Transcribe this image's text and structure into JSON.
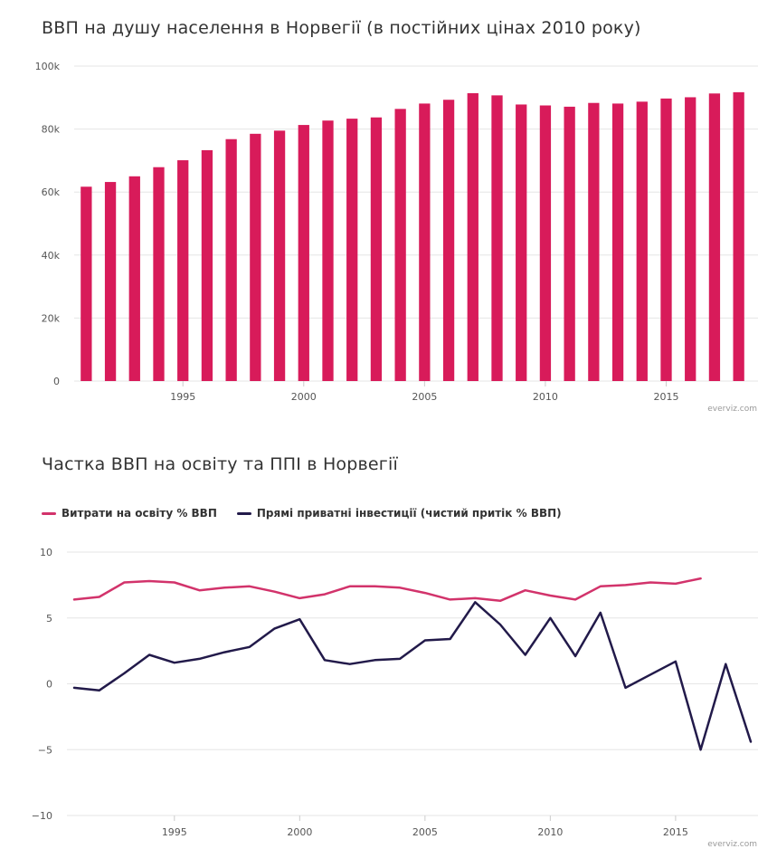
{
  "colors": {
    "bar": "#d81b5a",
    "series_education": "#d2336b",
    "series_fdi": "#221a4a",
    "grid": "#e6e6e6"
  },
  "credits": "everviz.com",
  "chart_data": [
    {
      "type": "bar",
      "title": "ВВП на душу населення в Норвегії (в постійних цінах 2010 року)",
      "x": [
        1991,
        1992,
        1993,
        1994,
        1995,
        1996,
        1997,
        1998,
        1999,
        2000,
        2001,
        2002,
        2003,
        2004,
        2005,
        2006,
        2007,
        2008,
        2009,
        2010,
        2011,
        2012,
        2013,
        2014,
        2015,
        2016,
        2017,
        2018
      ],
      "values": [
        61700,
        63200,
        65000,
        67900,
        70100,
        73300,
        76800,
        78500,
        79500,
        81300,
        82700,
        83300,
        83700,
        86400,
        88100,
        89300,
        91400,
        90700,
        87800,
        87500,
        87100,
        88300,
        88100,
        88700,
        89700,
        90100,
        91300,
        91700
      ],
      "xlabel": "",
      "ylabel": "",
      "ylim": [
        0,
        100000
      ],
      "yticks": [
        0,
        20000,
        40000,
        60000,
        80000,
        100000
      ],
      "ytick_labels": [
        "0",
        "20k",
        "40k",
        "60k",
        "80k",
        "100k"
      ],
      "xticks": [
        1995,
        2000,
        2005,
        2010,
        2015
      ],
      "xtick_labels": [
        "1995",
        "2000",
        "2005",
        "2010",
        "2015"
      ],
      "grid": true,
      "legend": "none"
    },
    {
      "type": "line",
      "title": "Частка ВВП на освіту та ППІ в Норвегії",
      "x": [
        1991,
        1992,
        1993,
        1994,
        1995,
        1996,
        1997,
        1998,
        1999,
        2000,
        2001,
        2002,
        2003,
        2004,
        2005,
        2006,
        2007,
        2008,
        2009,
        2010,
        2011,
        2012,
        2013,
        2014,
        2015,
        2016,
        2017,
        2018
      ],
      "series": [
        {
          "name": "Витрати на освіту % ВВП",
          "values": [
            6.4,
            6.6,
            7.7,
            7.8,
            7.7,
            7.1,
            7.3,
            7.4,
            7.0,
            6.5,
            6.8,
            7.4,
            7.4,
            7.3,
            6.9,
            6.4,
            6.5,
            6.3,
            7.1,
            6.7,
            6.4,
            7.4,
            7.5,
            7.7,
            7.6,
            8.0,
            null,
            null
          ]
        },
        {
          "name": "Прямі приватні інвестиції (чистий притік % ВВП)",
          "values": [
            -0.3,
            -0.5,
            0.8,
            2.2,
            1.6,
            1.9,
            2.4,
            2.8,
            4.2,
            4.9,
            1.8,
            1.5,
            1.8,
            1.9,
            3.3,
            3.4,
            6.2,
            4.5,
            2.2,
            5.0,
            2.1,
            5.4,
            -0.3,
            0.7,
            1.7,
            -5.0,
            1.5,
            -4.4
          ]
        }
      ],
      "xlabel": "",
      "ylabel": "",
      "ylim": [
        -10,
        10
      ],
      "yticks": [
        -10,
        -5,
        0,
        5,
        10
      ],
      "ytick_labels": [
        "−10",
        "−5",
        "0",
        "5",
        "10"
      ],
      "xticks": [
        1995,
        2000,
        2005,
        2010,
        2015
      ],
      "xtick_labels": [
        "1995",
        "2000",
        "2005",
        "2010",
        "2015"
      ],
      "grid": true,
      "legend": "top-left"
    }
  ]
}
